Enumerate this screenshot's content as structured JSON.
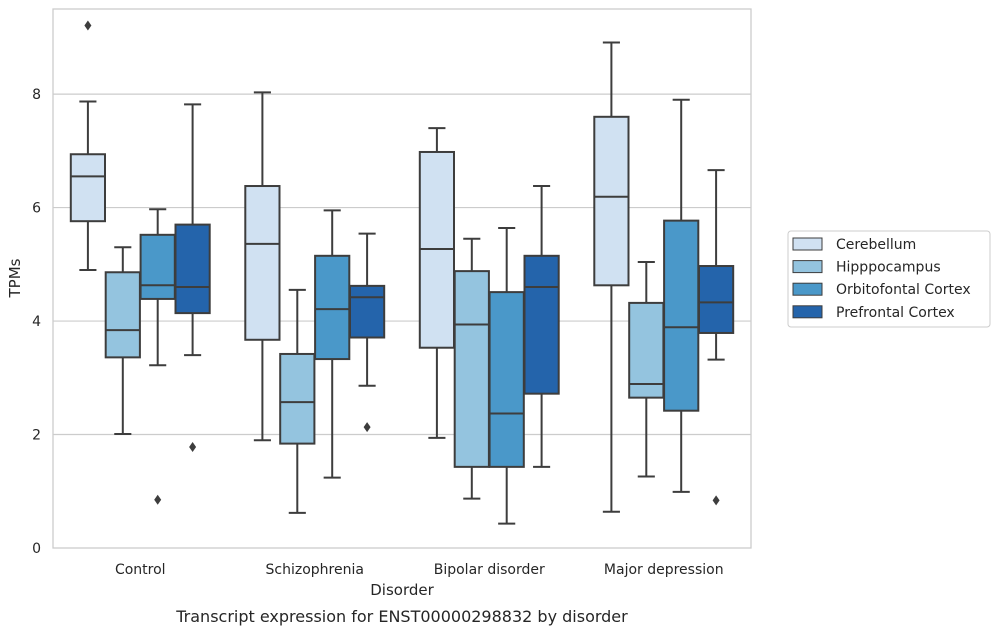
{
  "chart_data": {
    "type": "box",
    "xlabel": "Disorder",
    "ylabel": "TPMs",
    "caption": "Transcript expression for ENST00000298832 by disorder",
    "ylim": [
      0,
      9.5
    ],
    "yticks": [
      0,
      2,
      4,
      6,
      8
    ],
    "grid": "horizontal",
    "legend_position": "right",
    "categories": [
      "Control",
      "Schizophrenia",
      "Bipolar disorder",
      "Major depression"
    ],
    "series": [
      {
        "name": "Cerebellum",
        "color": "#d0e1f2",
        "boxes": [
          {
            "whisker_low": 4.9,
            "q1": 5.76,
            "median": 6.55,
            "q3": 6.94,
            "whisker_high": 7.87,
            "outliers": [
              9.21
            ]
          },
          {
            "whisker_low": 1.9,
            "q1": 3.67,
            "median": 5.36,
            "q3": 6.38,
            "whisker_high": 8.03,
            "outliers": []
          },
          {
            "whisker_low": 1.94,
            "q1": 3.53,
            "median": 5.27,
            "q3": 6.98,
            "whisker_high": 7.4,
            "outliers": []
          },
          {
            "whisker_low": 0.64,
            "q1": 4.63,
            "median": 6.19,
            "q3": 7.6,
            "whisker_high": 8.91,
            "outliers": []
          }
        ]
      },
      {
        "name": "Hipppocampus",
        "color": "#94c4df",
        "boxes": [
          {
            "whisker_low": 2.01,
            "q1": 3.36,
            "median": 3.84,
            "q3": 4.86,
            "whisker_high": 5.3,
            "outliers": []
          },
          {
            "whisker_low": 0.62,
            "q1": 1.84,
            "median": 2.57,
            "q3": 3.42,
            "whisker_high": 4.55,
            "outliers": []
          },
          {
            "whisker_low": 0.87,
            "q1": 1.43,
            "median": 3.94,
            "q3": 4.88,
            "whisker_high": 5.45,
            "outliers": []
          },
          {
            "whisker_low": 1.26,
            "q1": 2.65,
            "median": 2.89,
            "q3": 4.32,
            "whisker_high": 5.04,
            "outliers": []
          }
        ]
      },
      {
        "name": "Orbitofontal Cortex",
        "color": "#4a98c9",
        "boxes": [
          {
            "whisker_low": 3.22,
            "q1": 4.39,
            "median": 4.63,
            "q3": 5.52,
            "whisker_high": 5.97,
            "outliers": [
              0.85
            ]
          },
          {
            "whisker_low": 1.24,
            "q1": 3.33,
            "median": 4.21,
            "q3": 5.15,
            "whisker_high": 5.95,
            "outliers": []
          },
          {
            "whisker_low": 0.43,
            "q1": 1.43,
            "median": 2.37,
            "q3": 4.51,
            "whisker_high": 5.64,
            "outliers": []
          },
          {
            "whisker_low": 0.99,
            "q1": 2.42,
            "median": 3.89,
            "q3": 5.77,
            "whisker_high": 7.9,
            "outliers": []
          }
        ]
      },
      {
        "name": "Prefrontal Cortex",
        "color": "#2464ab",
        "boxes": [
          {
            "whisker_low": 3.4,
            "q1": 4.14,
            "median": 4.6,
            "q3": 5.7,
            "whisker_high": 7.82,
            "outliers": [
              1.78
            ]
          },
          {
            "whisker_low": 2.86,
            "q1": 3.71,
            "median": 4.42,
            "q3": 4.62,
            "whisker_high": 5.54,
            "outliers": [
              2.13
            ]
          },
          {
            "whisker_low": 1.43,
            "q1": 2.72,
            "median": 4.6,
            "q3": 5.15,
            "whisker_high": 6.38,
            "outliers": []
          },
          {
            "whisker_low": 3.32,
            "q1": 3.79,
            "median": 4.33,
            "q3": 4.97,
            "whisker_high": 6.66,
            "outliers": [
              0.84
            ]
          }
        ]
      }
    ]
  }
}
